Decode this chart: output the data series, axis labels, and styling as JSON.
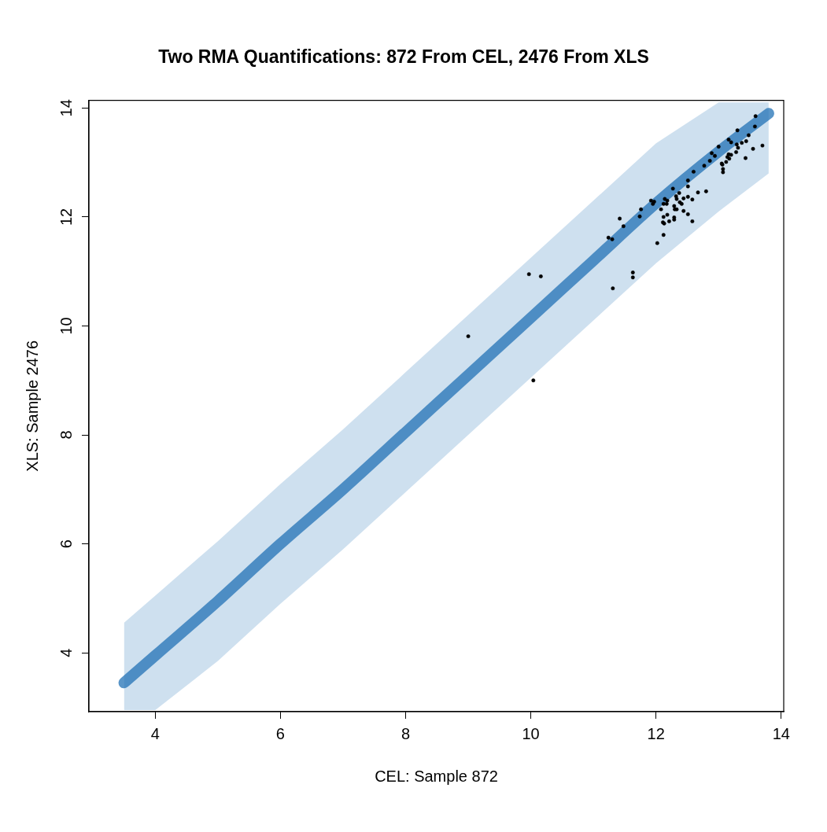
{
  "chart_data": {
    "type": "scatter",
    "title": "Two RMA Quantifications: 872 From CEL, 2476 From XLS",
    "xlabel": "CEL: Sample 872",
    "ylabel": "XLS: Sample 2476",
    "xlim": [
      2.94,
      14.04
    ],
    "ylim": [
      2.92,
      14.14
    ],
    "xticks": [
      4,
      6,
      8,
      10,
      12,
      14
    ],
    "yticks": [
      4,
      6,
      8,
      10,
      12,
      14
    ],
    "grid": false,
    "legend": false,
    "series": [
      {
        "type": "line",
        "color": "#2171b5",
        "x": [
          3.5,
          4,
          5,
          6,
          7,
          8,
          9,
          10,
          11,
          12,
          13,
          13.8
        ],
        "values": [
          3.45,
          3.95,
          4.95,
          6.0,
          7.0,
          8.05,
          9.1,
          10.15,
          11.2,
          12.25,
          13.2,
          13.9
        ],
        "lower": [
          2.95,
          2.95,
          3.85,
          4.9,
          5.9,
          6.95,
          8.0,
          9.05,
          10.1,
          11.15,
          12.1,
          12.8
        ],
        "upper": [
          4.55,
          5.05,
          6.05,
          7.1,
          8.1,
          9.15,
          10.2,
          11.25,
          12.3,
          13.35,
          14.1,
          14.1
        ]
      },
      {
        "type": "scatter",
        "color": "#000000",
        "marker": "circle",
        "x": [
          13.59,
          13.58,
          13.7,
          13.55,
          13.43,
          13.3,
          13.48,
          13.44,
          13.37,
          13.29,
          13.31,
          13.28,
          13.16,
          13.2,
          13.0,
          13.16,
          13.2,
          13.14,
          13.17,
          12.89,
          12.94,
          12.86,
          12.77,
          13.05,
          13.06,
          13.12,
          13.07,
          13.07,
          12.6,
          12.51,
          12.51,
          12.27,
          12.67,
          12.8,
          12.37,
          12.32,
          12.51,
          12.44,
          12.58,
          12.33,
          12.14,
          12.18,
          11.92,
          11.97,
          11.95,
          12.12,
          12.17,
          12.38,
          12.41,
          12.29,
          11.76,
          12.08,
          12.3,
          12.33,
          12.44,
          12.51,
          11.74,
          12.12,
          12.18,
          12.29,
          12.29,
          11.42,
          11.48,
          12.11,
          12.13,
          12.21,
          12.58,
          12.12,
          12.02,
          11.24,
          11.3,
          11.63,
          11.63,
          11.31,
          9.97,
          10.16,
          9.0,
          10.04
        ],
        "values": [
          13.85,
          13.66,
          13.31,
          13.25,
          13.08,
          13.59,
          13.5,
          13.39,
          13.36,
          13.33,
          13.27,
          13.19,
          13.42,
          13.37,
          13.29,
          13.15,
          13.14,
          13.1,
          13.07,
          13.17,
          13.12,
          13.03,
          12.94,
          12.98,
          12.96,
          13.01,
          12.88,
          12.82,
          12.83,
          12.67,
          12.56,
          12.52,
          12.45,
          12.47,
          12.44,
          12.38,
          12.37,
          12.34,
          12.32,
          12.33,
          12.33,
          12.3,
          12.3,
          12.28,
          12.24,
          12.24,
          12.24,
          12.27,
          12.24,
          12.2,
          12.14,
          12.14,
          12.14,
          12.14,
          12.11,
          12.05,
          12.01,
          12.0,
          12.04,
          11.99,
          11.95,
          11.97,
          11.83,
          11.9,
          11.88,
          11.92,
          11.92,
          11.67,
          11.52,
          11.62,
          11.59,
          10.98,
          10.89,
          10.69,
          10.95,
          10.91,
          9.81,
          9.0
        ]
      }
    ]
  }
}
